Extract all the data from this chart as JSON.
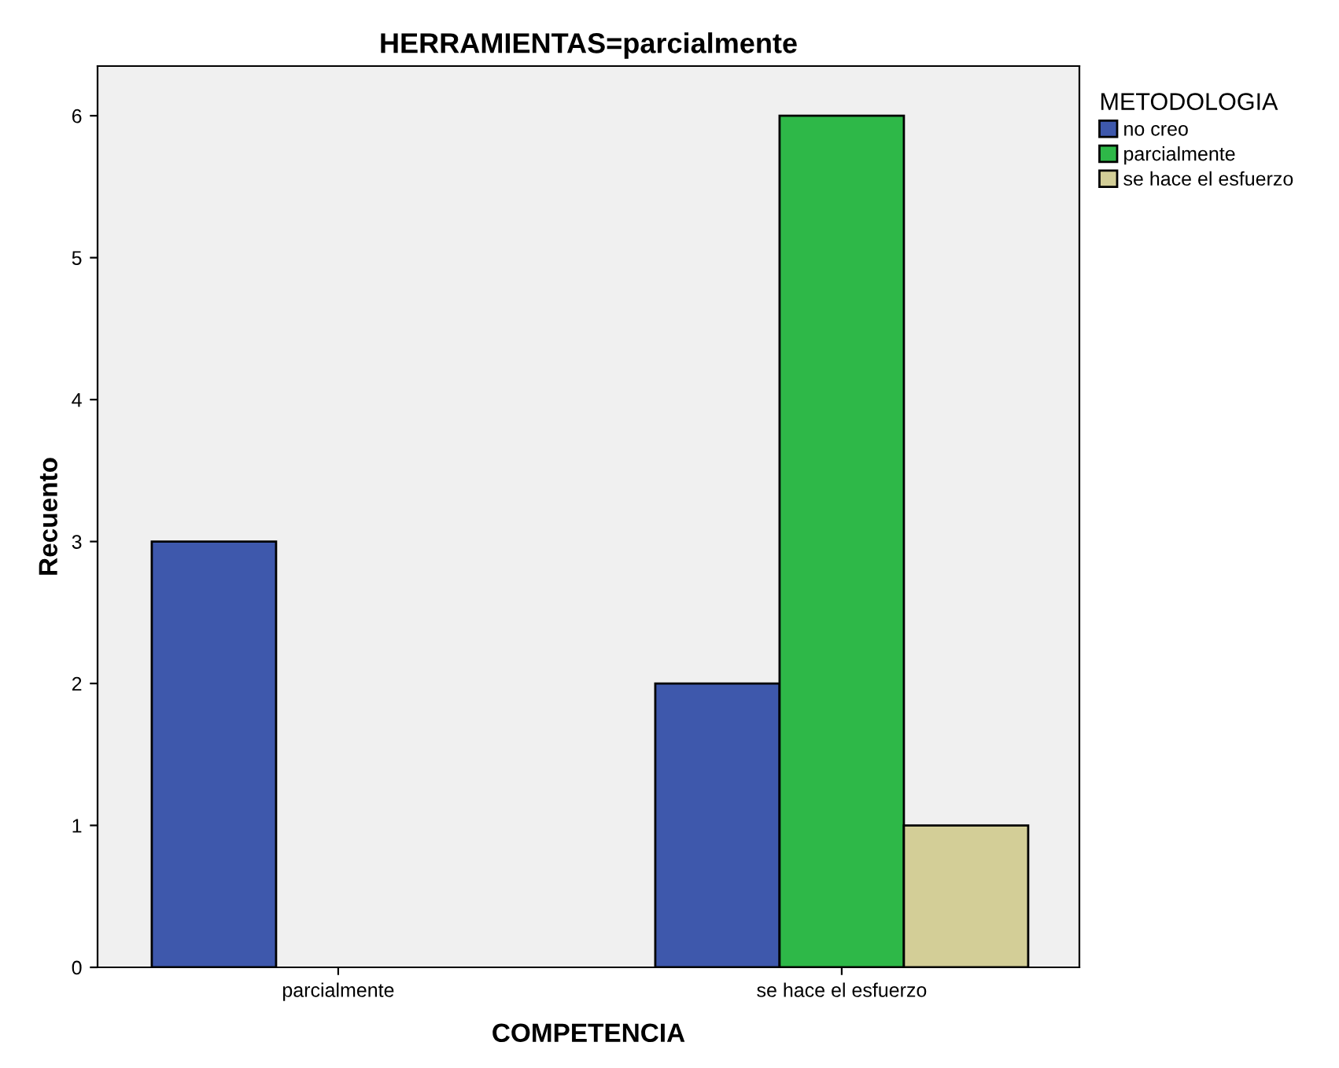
{
  "chart_data": {
    "type": "bar",
    "title": "HERRAMIENTAS=parcialmente",
    "xlabel": "COMPETENCIA",
    "ylabel": "Recuento",
    "legend_title": "METODOLOGIA",
    "categories": [
      "parcialmente",
      "se hace el esfuerzo"
    ],
    "series": [
      {
        "name": "no creo",
        "color": "#3e58ac",
        "values": [
          3,
          2
        ]
      },
      {
        "name": "parcialmente",
        "color": "#2eb848",
        "values": [
          null,
          6
        ]
      },
      {
        "name": "se hace el esfuerzo",
        "color": "#d3ce97",
        "values": [
          null,
          1
        ]
      }
    ],
    "ylim": [
      0,
      6.35
    ],
    "yticks": [
      0,
      1,
      2,
      3,
      4,
      5,
      6
    ],
    "grid": false,
    "legend": "top right"
  }
}
